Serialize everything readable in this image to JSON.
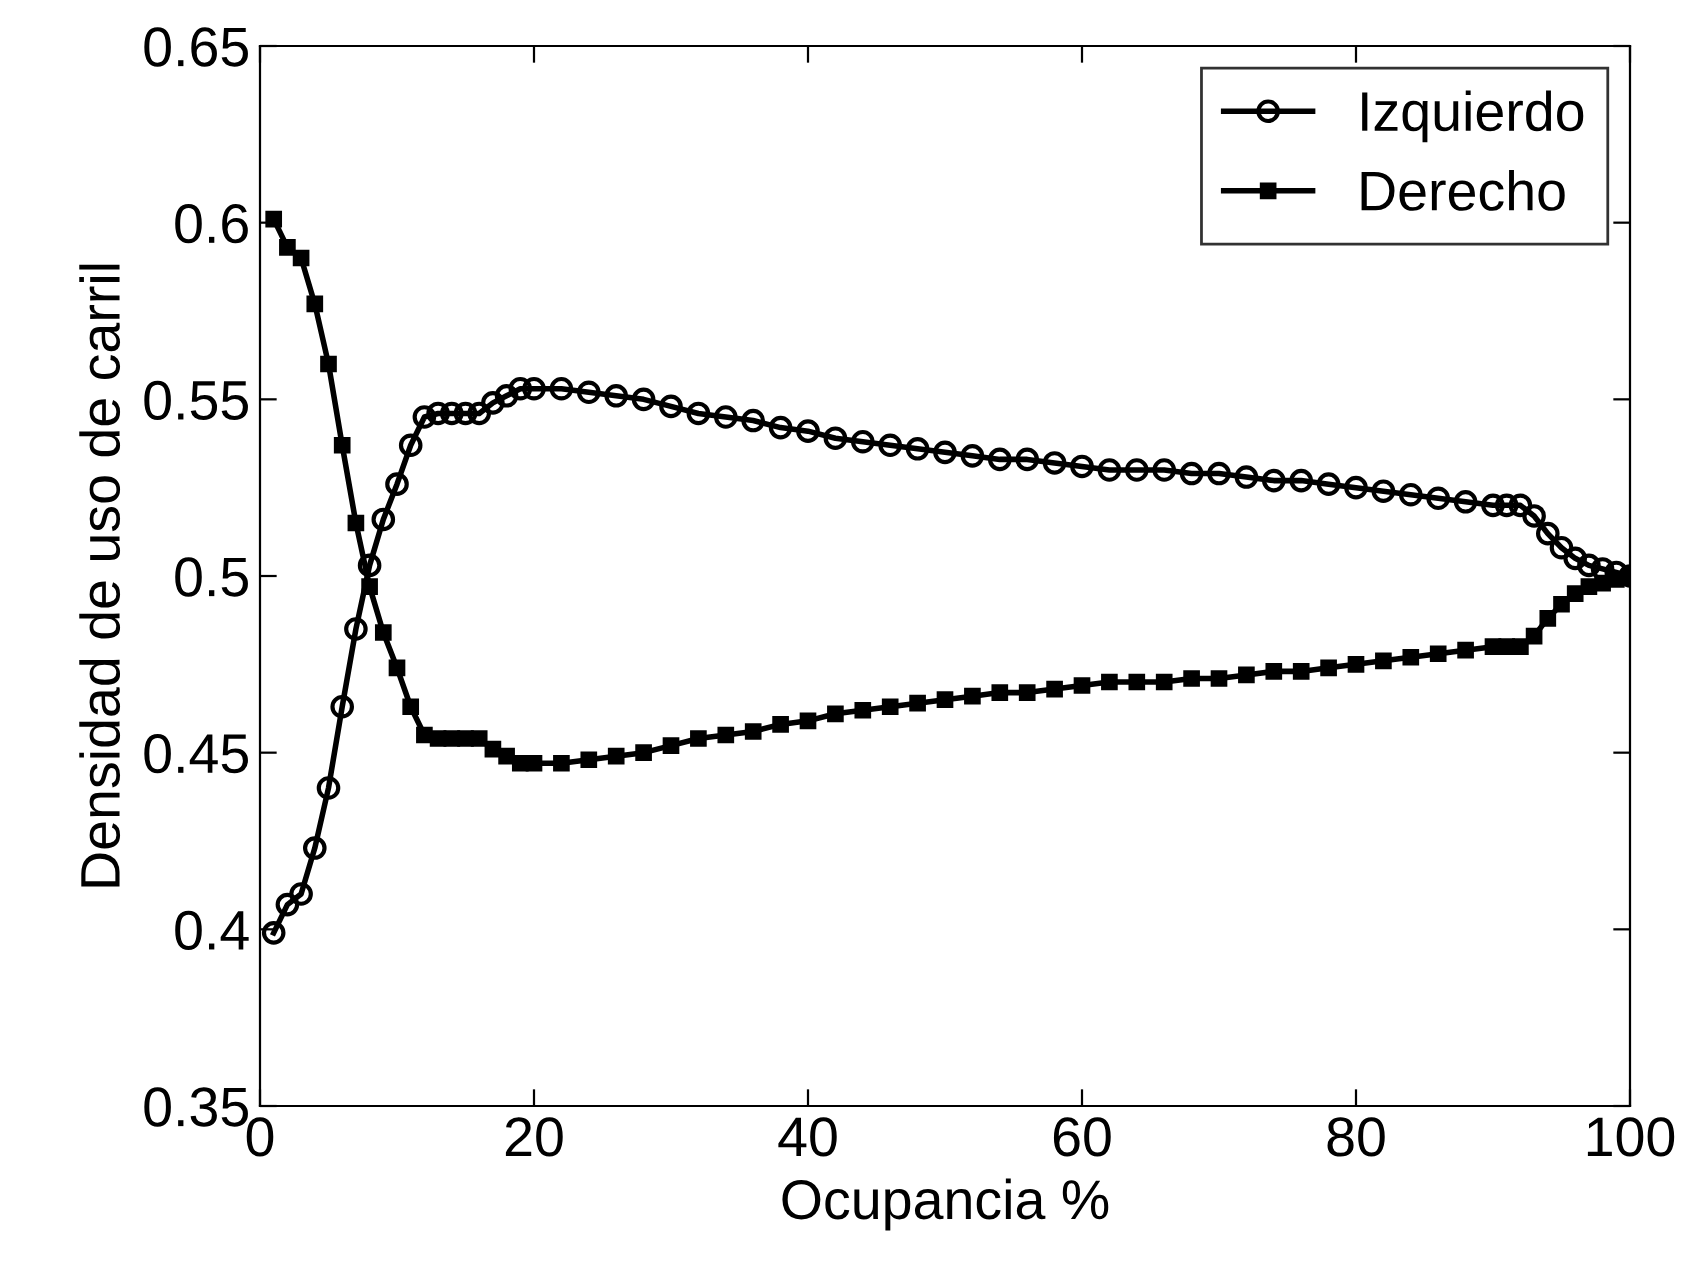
{
  "chart_data": {
    "type": "line",
    "xlabel": "Ocupancia %",
    "ylabel": "Densidad de uso de carril",
    "x": [
      1,
      2,
      3,
      4,
      5,
      6,
      7,
      8,
      9,
      10,
      11,
      12,
      13,
      14,
      15,
      16,
      17,
      18,
      19,
      20,
      22,
      24,
      26,
      28,
      30,
      32,
      34,
      36,
      38,
      40,
      42,
      44,
      46,
      48,
      50,
      52,
      54,
      56,
      58,
      60,
      62,
      64,
      66,
      68,
      70,
      72,
      74,
      76,
      78,
      80,
      82,
      84,
      86,
      88,
      90,
      91,
      92,
      93,
      94,
      95,
      96,
      97,
      98,
      99,
      100
    ],
    "series": [
      {
        "name": "Izquierdo",
        "color": "#000000",
        "marker": "circle",
        "values": [
          0.399,
          0.407,
          0.41,
          0.423,
          0.44,
          0.463,
          0.485,
          0.503,
          0.516,
          0.526,
          0.537,
          0.545,
          0.546,
          0.546,
          0.546,
          0.546,
          0.549,
          0.551,
          0.553,
          0.553,
          0.553,
          0.552,
          0.551,
          0.55,
          0.548,
          0.546,
          0.545,
          0.544,
          0.542,
          0.541,
          0.539,
          0.538,
          0.537,
          0.536,
          0.535,
          0.534,
          0.533,
          0.533,
          0.532,
          0.531,
          0.53,
          0.53,
          0.53,
          0.529,
          0.529,
          0.528,
          0.527,
          0.527,
          0.526,
          0.525,
          0.524,
          0.523,
          0.522,
          0.521,
          0.52,
          0.52,
          0.52,
          0.517,
          0.512,
          0.508,
          0.505,
          0.503,
          0.502,
          0.501,
          0.5
        ]
      },
      {
        "name": "Derecho",
        "color": "#000000",
        "marker": "square",
        "values": [
          0.601,
          0.593,
          0.59,
          0.577,
          0.56,
          0.537,
          0.515,
          0.497,
          0.484,
          0.474,
          0.463,
          0.455,
          0.454,
          0.454,
          0.454,
          0.454,
          0.451,
          0.449,
          0.447,
          0.447,
          0.447,
          0.448,
          0.449,
          0.45,
          0.452,
          0.454,
          0.455,
          0.456,
          0.458,
          0.459,
          0.461,
          0.462,
          0.463,
          0.464,
          0.465,
          0.466,
          0.467,
          0.467,
          0.468,
          0.469,
          0.47,
          0.47,
          0.47,
          0.471,
          0.471,
          0.472,
          0.473,
          0.473,
          0.474,
          0.475,
          0.476,
          0.477,
          0.478,
          0.479,
          0.48,
          0.48,
          0.48,
          0.483,
          0.488,
          0.492,
          0.495,
          0.497,
          0.498,
          0.499,
          0.5
        ]
      }
    ],
    "xlim": [
      0,
      100
    ],
    "xticks": [
      0,
      20,
      40,
      60,
      80,
      100
    ],
    "ylim": [
      0.35,
      0.65
    ],
    "yticks": [
      {
        "value": 0.35,
        "label": "0.35"
      },
      {
        "value": 0.4,
        "label": "0.4"
      },
      {
        "value": 0.45,
        "label": "0.45"
      },
      {
        "value": 0.5,
        "label": "0.5"
      },
      {
        "value": 0.55,
        "label": "0.55"
      },
      {
        "value": 0.6,
        "label": "0.6"
      },
      {
        "value": 0.65,
        "label": "0.65"
      }
    ],
    "legend": "top right",
    "line_style": "solid"
  }
}
